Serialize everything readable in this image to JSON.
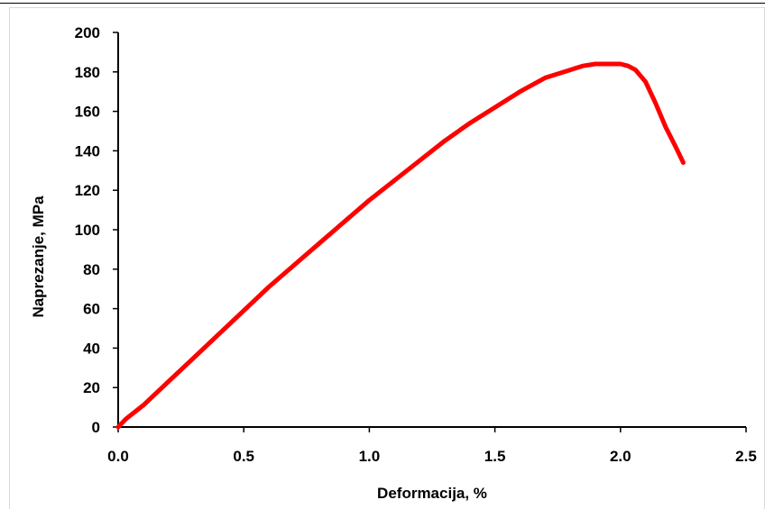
{
  "chart_data": {
    "type": "line",
    "xlabel": "Deformacija, %",
    "ylabel": "Naprezanje, MPa",
    "xlim": [
      0.0,
      2.5
    ],
    "ylim": [
      0,
      200
    ],
    "xticks": [
      "0.0",
      "0.5",
      "1.0",
      "1.5",
      "2.0",
      "2.5"
    ],
    "yticks": [
      "0",
      "20",
      "40",
      "60",
      "80",
      "100",
      "120",
      "140",
      "160",
      "180",
      "200"
    ],
    "grid": false,
    "legend": "none",
    "series": [
      {
        "color": "#ff0000",
        "x": [
          0.0,
          0.03,
          0.1,
          0.2,
          0.3,
          0.4,
          0.5,
          0.6,
          0.7,
          0.8,
          0.9,
          1.0,
          1.1,
          1.2,
          1.3,
          1.4,
          1.5,
          1.6,
          1.7,
          1.8,
          1.85,
          1.9,
          1.95,
          2.0,
          2.03,
          2.06,
          2.1,
          2.14,
          2.18,
          2.22,
          2.25
        ],
        "y": [
          0,
          4,
          11,
          23,
          35,
          47,
          59,
          71,
          82,
          93,
          104,
          115,
          125,
          135,
          145,
          154,
          162,
          170,
          177,
          181,
          183,
          184,
          184,
          184,
          183,
          181,
          175,
          164,
          152,
          142,
          134
        ]
      }
    ]
  }
}
